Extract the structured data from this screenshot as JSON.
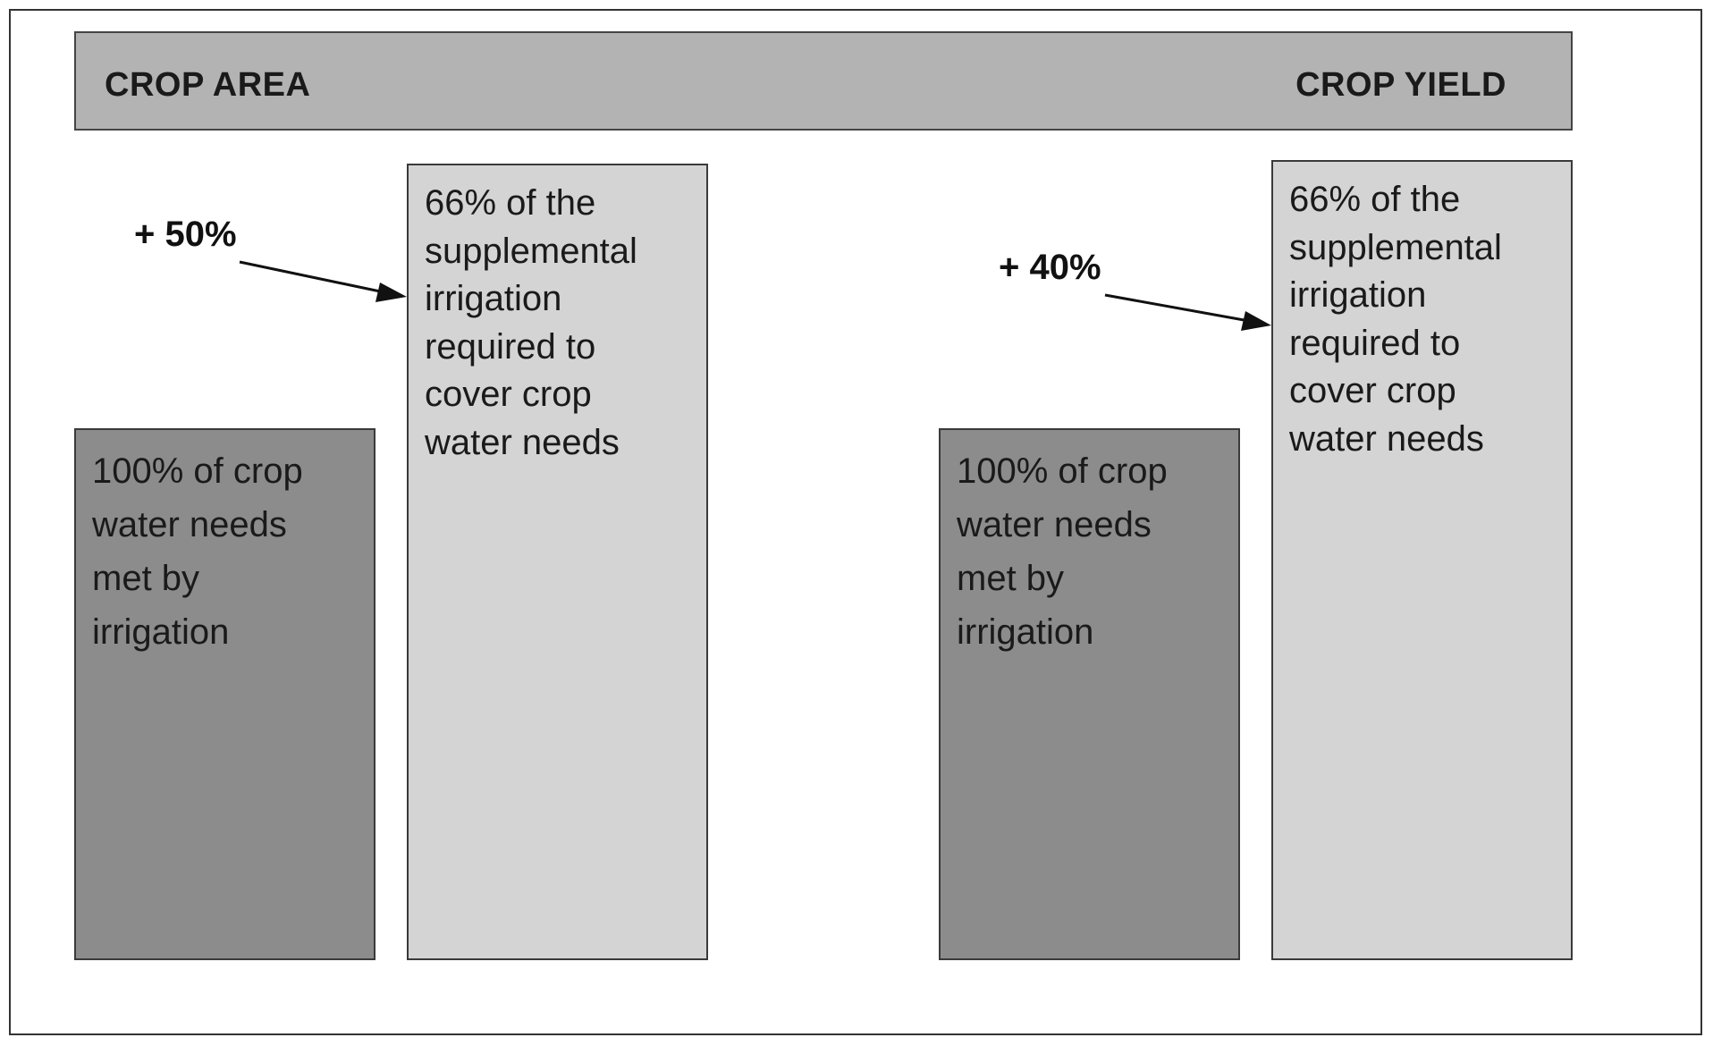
{
  "header": {
    "left_label": "CROP AREA",
    "right_label": "CROP YIELD"
  },
  "left_panel": {
    "increase_label": "+ 50%",
    "base_bar_text": "100% of crop\nwater needs\nmet by\nirrigation",
    "supplemental_bar_text": "66% of the\nsupplemental\nirrigation\nrequired to\ncover crop\nwater needs"
  },
  "right_panel": {
    "increase_label": "+ 40%",
    "base_bar_text": "100% of crop\nwater needs\nmet by\nirrigation",
    "supplemental_bar_text": "66% of the\nsupplemental\nirrigation\nrequired to\ncover crop\nwater needs"
  },
  "colors": {
    "header_bar": "#b3b3b3",
    "base_bar": "#8c8c8c",
    "supplemental_bar": "#d4d4d4",
    "arrow": "#111111"
  }
}
